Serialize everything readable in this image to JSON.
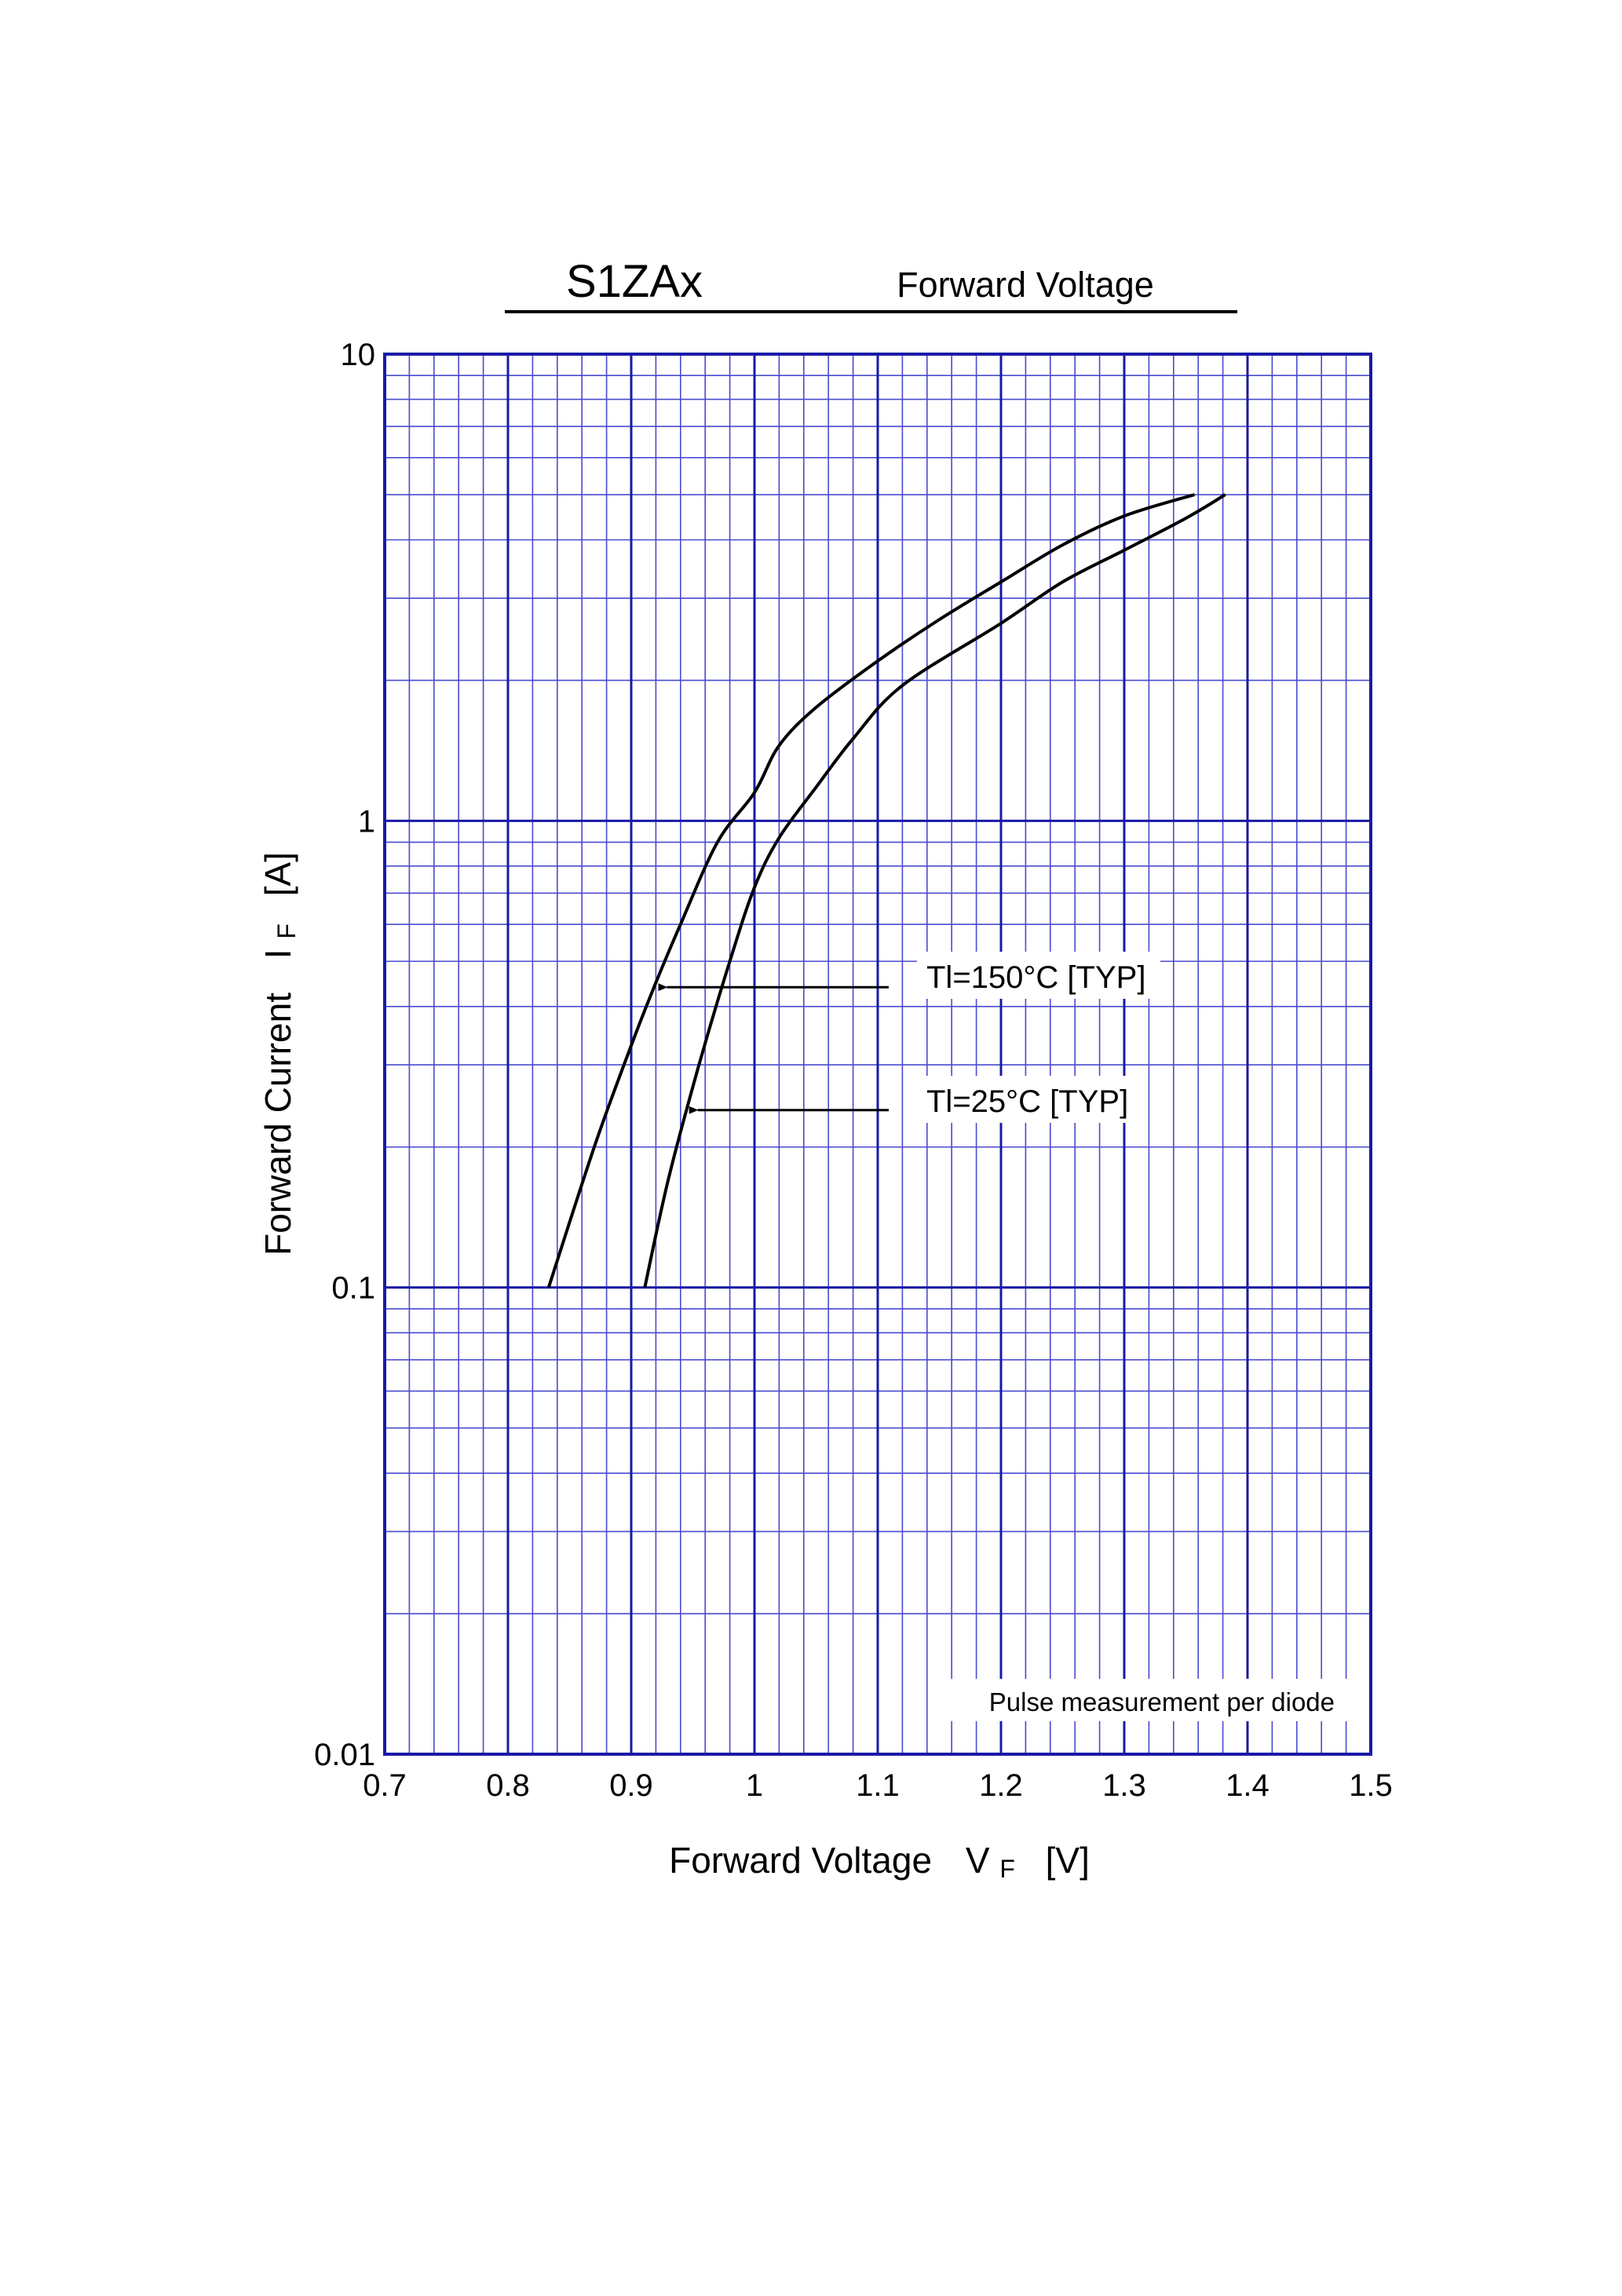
{
  "chart_data": {
    "type": "line",
    "title": "S1ZAx",
    "subtitle": "Forward Voltage",
    "xlabel": "Forward Voltage",
    "xlabel_symbol": "V",
    "xlabel_subscript": "F",
    "xlabel_unit": "[V]",
    "ylabel": "Forward Current",
    "ylabel_symbol": "I",
    "ylabel_subscript": "F",
    "ylabel_unit": "[A]",
    "xlim": [
      0.7,
      1.5
    ],
    "ylim": [
      0.01,
      10
    ],
    "yscale": "log",
    "grid": true,
    "x_ticks": [
      "0.7",
      "0.8",
      "0.9",
      "1",
      "1.1",
      "1.2",
      "1.3",
      "1.4",
      "1.5"
    ],
    "y_ticks": [
      "0.01",
      "0.1",
      "1",
      "10"
    ],
    "note": "Pulse measurement per diode",
    "grid_color": "#1a1aa6",
    "grid_minor_color": "#4a4ad0",
    "line_color": "#000000",
    "series": [
      {
        "name": "Tl=150°C [TYP]",
        "points": [
          [
            0.833,
            0.1
          ],
          [
            0.87,
            0.2
          ],
          [
            0.9,
            0.33
          ],
          [
            0.92,
            0.45
          ],
          [
            0.94,
            0.6
          ],
          [
            0.97,
            0.9
          ],
          [
            1.0,
            1.15
          ],
          [
            1.02,
            1.45
          ],
          [
            1.05,
            1.75
          ],
          [
            1.1,
            2.2
          ],
          [
            1.15,
            2.7
          ],
          [
            1.2,
            3.25
          ],
          [
            1.25,
            3.9
          ],
          [
            1.3,
            4.5
          ],
          [
            1.357,
            5.0
          ]
        ],
        "label_arrow_at": [
          0.92,
          0.44
        ]
      },
      {
        "name": "Tl=25°C [TYP]",
        "points": [
          [
            0.911,
            0.1
          ],
          [
            0.93,
            0.17
          ],
          [
            0.955,
            0.3
          ],
          [
            0.98,
            0.5
          ],
          [
            1.0,
            0.72
          ],
          [
            1.02,
            0.92
          ],
          [
            1.05,
            1.18
          ],
          [
            1.08,
            1.5
          ],
          [
            1.12,
            1.95
          ],
          [
            1.2,
            2.65
          ],
          [
            1.25,
            3.25
          ],
          [
            1.3,
            3.8
          ],
          [
            1.35,
            4.45
          ],
          [
            1.382,
            5.0
          ]
        ],
        "label_arrow_at": [
          0.945,
          0.24
        ]
      }
    ]
  }
}
